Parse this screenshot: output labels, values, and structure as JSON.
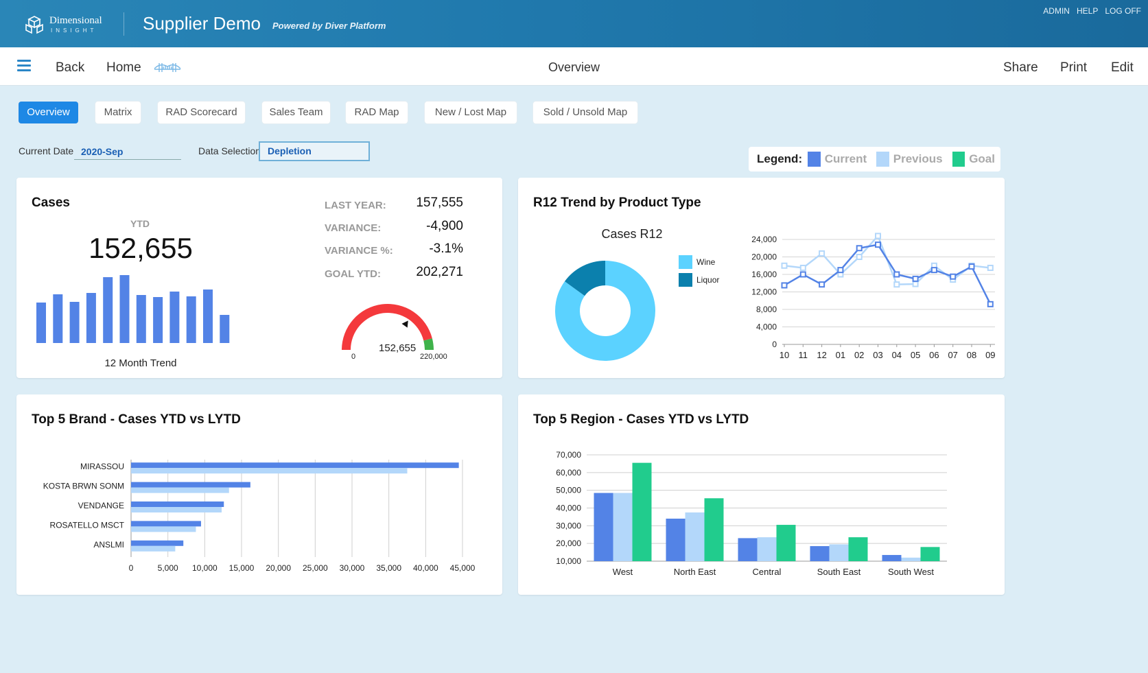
{
  "header": {
    "logo_line1": "Dimensional",
    "logo_line2": "INSIGHT",
    "app_title": "Supplier Demo",
    "app_subtitle": "Powered by Diver Platform",
    "links": [
      "ADMIN",
      "HELP",
      "LOG OFF"
    ]
  },
  "nav": {
    "back": "Back",
    "home": "Home",
    "page_title": "Overview",
    "share": "Share",
    "print": "Print",
    "edit": "Edit"
  },
  "tabs": [
    "Overview",
    "Matrix",
    "RAD Scorecard",
    "Sales Team",
    "RAD Map",
    "New / Lost Map",
    "Sold / Unsold Map"
  ],
  "active_tab": "Overview",
  "filters": {
    "current_date_label": "Current Date",
    "current_date_value": "2020-Sep",
    "data_selection_label": "Data Selection",
    "data_selection_value": "Depletion"
  },
  "legend": {
    "title": "Legend:",
    "items": [
      {
        "label": "Current",
        "color": "#5383e6"
      },
      {
        "label": "Previous",
        "color": "#b3d7fa"
      },
      {
        "label": "Goal",
        "color": "#21cc8d"
      }
    ]
  },
  "cases_card": {
    "title": "Cases",
    "ytd_label": "YTD",
    "ytd_value": "152,655",
    "trend_label": "12 Month Trend",
    "trend_values": [
      59,
      71,
      60,
      73,
      96,
      99,
      70,
      67,
      75,
      68,
      78,
      41
    ],
    "stats": [
      {
        "label": "LAST YEAR:",
        "value": "157,555"
      },
      {
        "label": "VARIANCE:",
        "value": "-4,900"
      },
      {
        "label": "VARIANCE %:",
        "value": "-3.1%"
      },
      {
        "label": "GOAL YTD:",
        "value": "202,271"
      }
    ],
    "gauge": {
      "min": "0",
      "max": "220,000",
      "value_label": "152,655",
      "value": 152655,
      "max_value": 220000,
      "green_from": 202271
    }
  },
  "r12_card": {
    "title": "R12 Trend by Product Type",
    "donut_title": "Cases R12",
    "donut": [
      {
        "label": "Wine",
        "value": 85,
        "color": "#5bd2ff"
      },
      {
        "label": "Liquor",
        "value": 15,
        "color": "#0b80ad"
      }
    ]
  },
  "brand_card": {
    "title": "Top 5 Brand - Cases YTD vs LYTD"
  },
  "region_card": {
    "title": "Top 5 Region - Cases YTD vs LYTD"
  },
  "chart_data": [
    {
      "type": "line",
      "x": [
        "10",
        "11",
        "12",
        "01",
        "02",
        "03",
        "04",
        "05",
        "06",
        "07",
        "08",
        "09"
      ],
      "ylim": [
        0,
        24000
      ],
      "yticks": [
        "0",
        "4,000",
        "8,000",
        "12,000",
        "16,000",
        "20,000",
        "24,000"
      ],
      "series": [
        {
          "name": "Current",
          "color": "#5383e6",
          "values": [
            13500,
            16000,
            13700,
            17000,
            22000,
            22800,
            16000,
            15000,
            17000,
            15500,
            17800,
            9200
          ]
        },
        {
          "name": "Previous",
          "color": "#b3d7fa",
          "values": [
            18000,
            17500,
            20800,
            16000,
            20000,
            24800,
            13700,
            13800,
            18000,
            14800,
            18000,
            17500
          ]
        }
      ]
    },
    {
      "type": "bar",
      "orientation": "horizontal",
      "categories": [
        "MIRASSOU",
        "KOSTA BRWN SONM",
        "VENDANGE",
        "ROSATELLO MSCT",
        "ANSLMI"
      ],
      "xlim": [
        0,
        45000
      ],
      "xticks": [
        "0",
        "5,000",
        "10,000",
        "15,000",
        "20,000",
        "25,000",
        "30,000",
        "35,000",
        "40,000",
        "45,000"
      ],
      "series": [
        {
          "name": "Current",
          "color": "#5383e6",
          "values": [
            44500,
            16200,
            12600,
            9500,
            7100
          ]
        },
        {
          "name": "Previous",
          "color": "#b3d7fa",
          "values": [
            37500,
            13300,
            12300,
            8800,
            6000
          ]
        }
      ]
    },
    {
      "type": "bar",
      "categories": [
        "West",
        "North East",
        "Central",
        "South East",
        "South West"
      ],
      "ylim": [
        10000,
        70000
      ],
      "yticks": [
        "10,000",
        "20,000",
        "30,000",
        "40,000",
        "50,000",
        "60,000",
        "70,000"
      ],
      "series": [
        {
          "name": "Current",
          "color": "#5383e6",
          "values": [
            48500,
            34000,
            23000,
            18500,
            13500
          ]
        },
        {
          "name": "Previous",
          "color": "#b3d7fa",
          "values": [
            48500,
            37500,
            23500,
            19500,
            12000
          ]
        },
        {
          "name": "Goal",
          "color": "#21cc8d",
          "values": [
            65500,
            45500,
            30500,
            23500,
            18000
          ]
        }
      ]
    }
  ]
}
